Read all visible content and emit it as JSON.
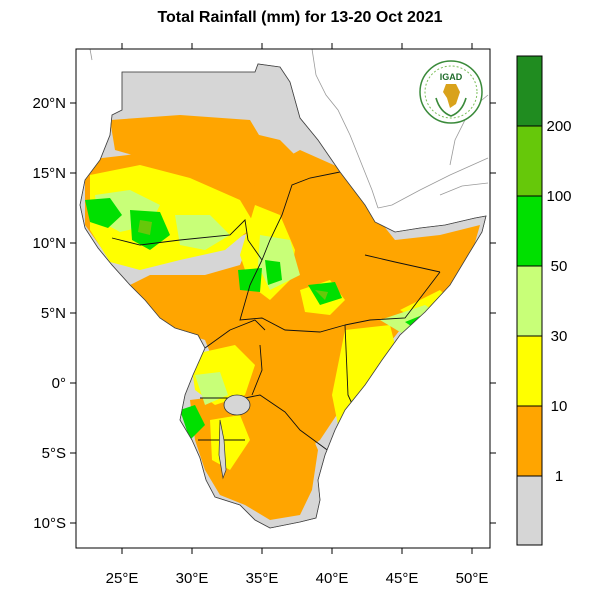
{
  "title": "Total Rainfall (mm) for 13-20 Oct 2021",
  "logo_text": "IGAD",
  "latitude_labels": [
    "20°N",
    "15°N",
    "10°N",
    "5°N",
    "0°",
    "5°S",
    "10°S"
  ],
  "longitude_labels": [
    "25°E",
    "30°E",
    "35°E",
    "40°E",
    "45°E",
    "50°E"
  ],
  "legend": {
    "classes": [
      {
        "color": "#d6d6d6",
        "range": "<1"
      },
      {
        "color": "#ffa500",
        "range": "1-10"
      },
      {
        "color": "#ffff00",
        "range": "10-30"
      },
      {
        "color": "#c8ff78",
        "range": "30-50"
      },
      {
        "color": "#00e000",
        "range": "50-100"
      },
      {
        "color": "#66c80a",
        "range": "100-200"
      },
      {
        "color": "#208c20",
        "range": ">200"
      }
    ],
    "tick_labels": [
      "1",
      "10",
      "30",
      "50",
      "100",
      "200"
    ]
  },
  "colors": {
    "no_rain": "#d6d6d6",
    "light": "#ffa500",
    "moderate": "#ffff00",
    "heavy": "#00e000"
  }
}
